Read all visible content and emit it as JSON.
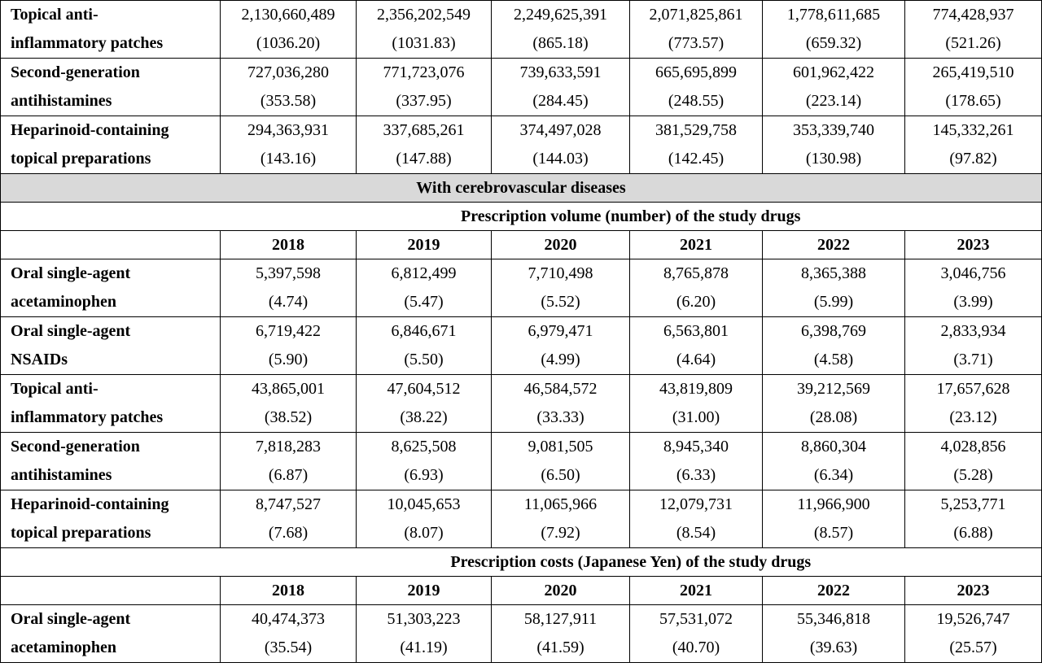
{
  "top_rows": [
    {
      "label": [
        "Topical anti-",
        "inflammatory patches"
      ],
      "values": [
        "2,130,660,489",
        "2,356,202,549",
        "2,249,625,391",
        "2,071,825,861",
        "1,778,611,685",
        "774,428,937"
      ],
      "pcts": [
        "(1036.20)",
        "(1031.83)",
        "(865.18)",
        "(773.57)",
        "(659.32)",
        "(521.26)"
      ]
    },
    {
      "label": [
        "Second-generation",
        "antihistamines"
      ],
      "values": [
        "727,036,280",
        "771,723,076",
        "739,633,591",
        "665,695,899",
        "601,962,422",
        "265,419,510"
      ],
      "pcts": [
        "(353.58)",
        "(337.95)",
        "(284.45)",
        "(248.55)",
        "(223.14)",
        "(178.65)"
      ]
    },
    {
      "label": [
        "Heparinoid-containing",
        "topical preparations"
      ],
      "values": [
        "294,363,931",
        "337,685,261",
        "374,497,028",
        "381,529,758",
        "353,339,740",
        "145,332,261"
      ],
      "pcts": [
        "(143.16)",
        "(147.88)",
        "(144.03)",
        "(142.45)",
        "(130.98)",
        "(97.82)"
      ]
    }
  ],
  "group_title": "With cerebrovascular diseases",
  "volume_title": "Prescription volume (number) of the study drugs",
  "cost_title": "Prescription costs (Japanese Yen) of the study drugs",
  "years": [
    "2018",
    "2019",
    "2020",
    "2021",
    "2022",
    "2023"
  ],
  "volume_rows": [
    {
      "label": [
        "Oral single-agent",
        "acetaminophen"
      ],
      "values": [
        "5,397,598",
        "6,812,499",
        "7,710,498",
        "8,765,878",
        "8,365,388",
        "3,046,756"
      ],
      "pcts": [
        "(4.74)",
        "(5.47)",
        "(5.52)",
        "(6.20)",
        "(5.99)",
        "(3.99)"
      ]
    },
    {
      "label": [
        "Oral single-agent",
        "NSAIDs"
      ],
      "values": [
        "6,719,422",
        "6,846,671",
        "6,979,471",
        "6,563,801",
        "6,398,769",
        "2,833,934"
      ],
      "pcts": [
        "(5.90)",
        "(5.50)",
        "(4.99)",
        "(4.64)",
        "(4.58)",
        "(3.71)"
      ]
    },
    {
      "label": [
        "Topical anti-",
        "inflammatory patches"
      ],
      "values": [
        "43,865,001",
        "47,604,512",
        "46,584,572",
        "43,819,809",
        "39,212,569",
        "17,657,628"
      ],
      "pcts": [
        "(38.52)",
        "(38.22)",
        "(33.33)",
        "(31.00)",
        "(28.08)",
        "(23.12)"
      ]
    },
    {
      "label": [
        "Second-generation",
        "antihistamines"
      ],
      "values": [
        "7,818,283",
        "8,625,508",
        "9,081,505",
        "8,945,340",
        "8,860,304",
        "4,028,856"
      ],
      "pcts": [
        "(6.87)",
        "(6.93)",
        "(6.50)",
        "(6.33)",
        "(6.34)",
        "(5.28)"
      ]
    },
    {
      "label": [
        "Heparinoid-containing",
        "topical preparations"
      ],
      "values": [
        "8,747,527",
        "10,045,653",
        "11,065,966",
        "12,079,731",
        "11,966,900",
        "5,253,771"
      ],
      "pcts": [
        "(7.68)",
        "(8.07)",
        "(7.92)",
        "(8.54)",
        "(8.57)",
        "(6.88)"
      ]
    }
  ],
  "cost_rows": [
    {
      "label": [
        "Oral single-agent",
        "acetaminophen"
      ],
      "values": [
        "40,474,373",
        "51,303,223",
        "58,127,911",
        "57,531,072",
        "55,346,818",
        "19,526,747"
      ],
      "pcts": [
        "(35.54)",
        "(41.19)",
        "(41.59)",
        "(40.70)",
        "(39.63)",
        "(25.57)"
      ]
    }
  ],
  "colors": {
    "banner_bg": "#d9d9d9",
    "border": "#000000"
  }
}
